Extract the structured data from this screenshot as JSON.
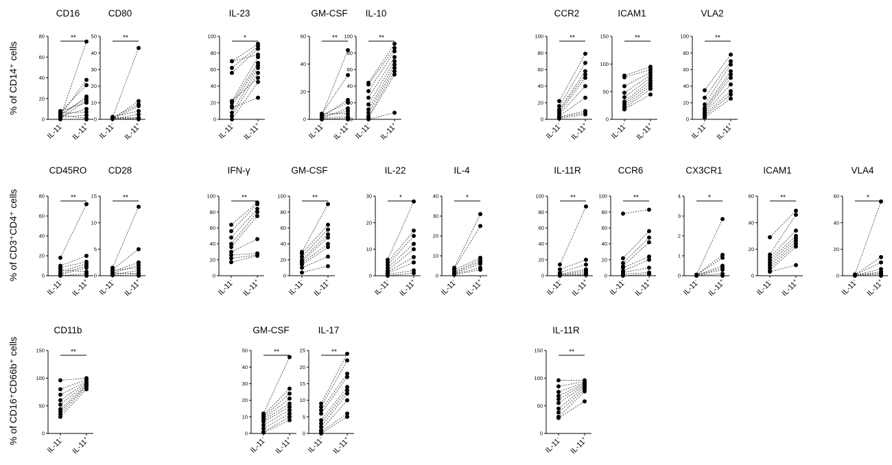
{
  "chart_data": [
    {
      "type": "scatter",
      "section": 0,
      "group": 0,
      "title": "CD16",
      "ylim": [
        0,
        80
      ],
      "yticks": [
        0,
        20,
        40,
        60,
        80
      ],
      "categories": [
        "IL-11-",
        "IL-11+"
      ],
      "significance": "**",
      "pairs": [
        [
          2,
          75
        ],
        [
          4,
          38
        ],
        [
          7,
          33
        ],
        [
          3,
          22
        ],
        [
          5,
          20
        ],
        [
          1,
          18
        ],
        [
          8,
          16
        ],
        [
          3,
          10
        ],
        [
          6,
          7
        ],
        [
          2,
          4
        ],
        [
          4,
          1
        ],
        [
          0,
          0
        ]
      ]
    },
    {
      "type": "scatter",
      "section": 0,
      "group": 0,
      "title": "CD80",
      "ylim": [
        0,
        50
      ],
      "yticks": [
        0,
        10,
        20,
        30,
        40,
        50
      ],
      "categories": [
        "IL-11-",
        "IL-11+"
      ],
      "significance": "**",
      "pairs": [
        [
          1,
          43
        ],
        [
          0.5,
          11
        ],
        [
          1,
          9
        ],
        [
          0.2,
          8
        ],
        [
          1.5,
          5
        ],
        [
          0.3,
          3
        ],
        [
          1,
          1
        ],
        [
          0.5,
          0.5
        ],
        [
          0.8,
          0
        ]
      ]
    },
    {
      "type": "scatter",
      "section": 0,
      "group": 1,
      "title": "IL-23",
      "ylim": [
        0,
        100
      ],
      "yticks": [
        0,
        20,
        40,
        60,
        80,
        100
      ],
      "categories": [
        "IL-11-",
        "IL-11+"
      ],
      "significance": "*",
      "pairs": [
        [
          70,
          91
        ],
        [
          62,
          88
        ],
        [
          56,
          85
        ],
        [
          70,
          78
        ],
        [
          22,
          75
        ],
        [
          20,
          68
        ],
        [
          16,
          65
        ],
        [
          8,
          62
        ],
        [
          4,
          56
        ],
        [
          22,
          50
        ],
        [
          0,
          45
        ],
        [
          14,
          26
        ]
      ]
    },
    {
      "type": "scatter",
      "section": 0,
      "group": 1,
      "title": "GM-CSF",
      "ylim": [
        0,
        60
      ],
      "yticks": [
        0,
        20,
        40,
        60
      ],
      "categories": [
        "IL-11-",
        "IL-11+"
      ],
      "significance": "**",
      "pairs": [
        [
          3,
          50
        ],
        [
          4,
          32
        ],
        [
          2,
          14
        ],
        [
          3,
          12
        ],
        [
          1,
          8
        ],
        [
          2,
          6
        ],
        [
          4,
          4
        ],
        [
          1,
          2
        ],
        [
          0,
          1
        ],
        [
          0.5,
          0
        ]
      ]
    },
    {
      "type": "scatter",
      "section": 0,
      "group": 1,
      "title": "IL-10",
      "ylim": [
        0,
        100
      ],
      "yticks": [
        0,
        20,
        40,
        60,
        80,
        100
      ],
      "categories": [
        "IL-11-",
        "IL-11+"
      ],
      "significance": "**",
      "pairs": [
        [
          44,
          91
        ],
        [
          42,
          86
        ],
        [
          34,
          82
        ],
        [
          26,
          75
        ],
        [
          18,
          70
        ],
        [
          12,
          66
        ],
        [
          8,
          62
        ],
        [
          4,
          58
        ],
        [
          2,
          54
        ],
        [
          0,
          8
        ]
      ]
    },
    {
      "type": "scatter",
      "section": 0,
      "group": 2,
      "title": "CCR2",
      "ylim": [
        0,
        100
      ],
      "yticks": [
        0,
        20,
        40,
        60,
        80,
        100
      ],
      "categories": [
        "IL-11-",
        "IL-11+"
      ],
      "significance": "**",
      "pairs": [
        [
          22,
          79
        ],
        [
          16,
          68
        ],
        [
          12,
          58
        ],
        [
          10,
          54
        ],
        [
          8,
          50
        ],
        [
          6,
          40
        ],
        [
          4,
          26
        ],
        [
          3,
          10
        ],
        [
          2,
          8
        ],
        [
          1,
          6
        ]
      ]
    },
    {
      "type": "scatter",
      "section": 0,
      "group": 2,
      "title": "ICAM1",
      "ylim": [
        0,
        150
      ],
      "yticks": [
        0,
        50,
        100,
        150
      ],
      "categories": [
        "IL-11-",
        "IL-11+"
      ],
      "significance": "**",
      "pairs": [
        [
          79,
          95
        ],
        [
          76,
          90
        ],
        [
          60,
          85
        ],
        [
          48,
          80
        ],
        [
          40,
          75
        ],
        [
          32,
          70
        ],
        [
          28,
          65
        ],
        [
          24,
          60
        ],
        [
          20,
          55
        ],
        [
          18,
          45
        ]
      ]
    },
    {
      "type": "scatter",
      "section": 0,
      "group": 2,
      "title": "VLA2",
      "ylim": [
        0,
        100
      ],
      "yticks": [
        0,
        20,
        40,
        60,
        80,
        100
      ],
      "categories": [
        "IL-11-",
        "IL-11+"
      ],
      "significance": "**",
      "pairs": [
        [
          35,
          78
        ],
        [
          26,
          70
        ],
        [
          18,
          66
        ],
        [
          14,
          58
        ],
        [
          12,
          54
        ],
        [
          10,
          50
        ],
        [
          8,
          42
        ],
        [
          6,
          34
        ],
        [
          4,
          30
        ],
        [
          2,
          25
        ]
      ]
    },
    {
      "type": "scatter",
      "section": 1,
      "group": 0,
      "title": "CD45RO",
      "ylim": [
        0,
        80
      ],
      "yticks": [
        0,
        20,
        40,
        60,
        80
      ],
      "categories": [
        "IL-11-",
        "IL-11+"
      ],
      "significance": "**",
      "pairs": [
        [
          18,
          72
        ],
        [
          10,
          20
        ],
        [
          8,
          14
        ],
        [
          4,
          12
        ],
        [
          2,
          10
        ],
        [
          1,
          8
        ],
        [
          6,
          4
        ],
        [
          0,
          2
        ],
        [
          0.5,
          0
        ]
      ]
    },
    {
      "type": "scatter",
      "section": 1,
      "group": 0,
      "title": "CD28",
      "ylim": [
        0,
        15
      ],
      "yticks": [
        0,
        5,
        10,
        15
      ],
      "categories": [
        "IL-11-",
        "IL-11+"
      ],
      "significance": "**",
      "pairs": [
        [
          1.5,
          13
        ],
        [
          1.2,
          5
        ],
        [
          0.8,
          2.5
        ],
        [
          0.5,
          2
        ],
        [
          1,
          1.5
        ],
        [
          0.2,
          1
        ],
        [
          0.3,
          0.5
        ],
        [
          0.6,
          0.2
        ],
        [
          0.1,
          0
        ]
      ]
    },
    {
      "type": "scatter",
      "section": 1,
      "group": 1,
      "title": "IFN-γ",
      "ylim": [
        0,
        100
      ],
      "yticks": [
        0,
        20,
        40,
        60,
        80,
        100
      ],
      "categories": [
        "IL-11-",
        "IL-11+"
      ],
      "significance": "**",
      "pairs": [
        [
          64,
          92
        ],
        [
          56,
          90
        ],
        [
          48,
          84
        ],
        [
          40,
          80
        ],
        [
          36,
          75
        ],
        [
          30,
          46
        ],
        [
          26,
          28
        ],
        [
          22,
          26
        ],
        [
          17,
          25
        ]
      ]
    },
    {
      "type": "scatter",
      "section": 1,
      "group": 1,
      "title": "GM-CSF",
      "ylim": [
        0,
        100
      ],
      "yticks": [
        0,
        20,
        40,
        60,
        80,
        100
      ],
      "categories": [
        "IL-11-",
        "IL-11+"
      ],
      "significance": "**",
      "pairs": [
        [
          30,
          90
        ],
        [
          28,
          64
        ],
        [
          24,
          58
        ],
        [
          20,
          52
        ],
        [
          18,
          48
        ],
        [
          16,
          40
        ],
        [
          14,
          36
        ],
        [
          10,
          24
        ],
        [
          4,
          12
        ]
      ]
    },
    {
      "type": "scatter",
      "section": 1,
      "group": 1,
      "title": "IL-22",
      "ylim": [
        0,
        30
      ],
      "yticks": [
        0,
        10,
        20,
        30
      ],
      "categories": [
        "IL-11-",
        "IL-11+"
      ],
      "significance": "*",
      "pairs": [
        [
          6,
          28
        ],
        [
          5,
          17
        ],
        [
          4,
          15
        ],
        [
          3,
          12
        ],
        [
          2,
          10
        ],
        [
          1.5,
          7
        ],
        [
          1,
          5
        ],
        [
          0.5,
          2
        ],
        [
          0,
          1
        ]
      ]
    },
    {
      "type": "scatter",
      "section": 1,
      "group": 1,
      "title": "IL-4",
      "ylim": [
        0,
        40
      ],
      "yticks": [
        0,
        10,
        20,
        30,
        40
      ],
      "categories": [
        "IL-11-",
        "IL-11+"
      ],
      "significance": "*",
      "pairs": [
        [
          4,
          31
        ],
        [
          3.5,
          25
        ],
        [
          3,
          9
        ],
        [
          2,
          8
        ],
        [
          1.5,
          7
        ],
        [
          1,
          6
        ],
        [
          0.8,
          4
        ],
        [
          0.5,
          3
        ]
      ]
    },
    {
      "type": "scatter",
      "section": 1,
      "group": 2,
      "title": "IL-11R",
      "ylim": [
        0,
        100
      ],
      "yticks": [
        0,
        20,
        40,
        60,
        80,
        100
      ],
      "categories": [
        "IL-11-",
        "IL-11+"
      ],
      "significance": "**",
      "pairs": [
        [
          14,
          87
        ],
        [
          8,
          20
        ],
        [
          4,
          14
        ],
        [
          2,
          8
        ],
        [
          1,
          6
        ],
        [
          0.5,
          4
        ],
        [
          0,
          2
        ],
        [
          0.2,
          1
        ]
      ]
    },
    {
      "type": "scatter",
      "section": 1,
      "group": 2,
      "title": "CCR6",
      "ylim": [
        0,
        100
      ],
      "yticks": [
        0,
        20,
        40,
        60,
        80,
        100
      ],
      "categories": [
        "IL-11-",
        "IL-11+"
      ],
      "significance": "**",
      "pairs": [
        [
          78,
          83
        ],
        [
          22,
          56
        ],
        [
          16,
          48
        ],
        [
          12,
          42
        ],
        [
          10,
          24
        ],
        [
          6,
          20
        ],
        [
          4,
          10
        ],
        [
          2,
          4
        ],
        [
          0,
          2
        ]
      ]
    },
    {
      "type": "scatter",
      "section": 1,
      "group": 2,
      "title": "CX3CR1",
      "ylim": [
        0,
        4
      ],
      "yticks": [
        0,
        1,
        2,
        3,
        4
      ],
      "categories": [
        "IL-11-",
        "IL-11+"
      ],
      "significance": "*",
      "pairs": [
        [
          0.05,
          2.85
        ],
        [
          0.04,
          1.05
        ],
        [
          0.03,
          0.9
        ],
        [
          0.02,
          0.5
        ],
        [
          0.02,
          0.4
        ],
        [
          0.01,
          0.3
        ],
        [
          0.01,
          0.1
        ],
        [
          0,
          0
        ]
      ]
    },
    {
      "type": "scatter",
      "section": 1,
      "group": 2,
      "title": "ICAM1",
      "ylim": [
        0,
        60
      ],
      "yticks": [
        0,
        20,
        40,
        60
      ],
      "categories": [
        "IL-11-",
        "IL-11+"
      ],
      "significance": "**",
      "pairs": [
        [
          29,
          49
        ],
        [
          16,
          46
        ],
        [
          14,
          34
        ],
        [
          12,
          30
        ],
        [
          10,
          28
        ],
        [
          8,
          26
        ],
        [
          6,
          24
        ],
        [
          4,
          22
        ],
        [
          3,
          8
        ]
      ]
    },
    {
      "type": "scatter",
      "section": 1,
      "group": 2,
      "title": "VLA4",
      "ylim": [
        0,
        60
      ],
      "yticks": [
        0,
        20,
        40,
        60
      ],
      "categories": [
        "IL-11-",
        "IL-11+"
      ],
      "significance": "*",
      "pairs": [
        [
          1,
          56
        ],
        [
          0.8,
          14
        ],
        [
          0.6,
          10
        ],
        [
          0.4,
          5
        ],
        [
          0.3,
          3
        ],
        [
          0.2,
          2
        ],
        [
          0.1,
          1
        ],
        [
          0,
          0
        ]
      ]
    },
    {
      "type": "scatter",
      "section": 2,
      "group": 0,
      "title": "CD11b",
      "ylim": [
        0,
        150
      ],
      "yticks": [
        0,
        50,
        100,
        150
      ],
      "categories": [
        "IL-11-",
        "IL-11+"
      ],
      "significance": "**",
      "pairs": [
        [
          96,
          100
        ],
        [
          80,
          97
        ],
        [
          70,
          94
        ],
        [
          60,
          92
        ],
        [
          52,
          90
        ],
        [
          44,
          88
        ],
        [
          40,
          86
        ],
        [
          35,
          84
        ],
        [
          30,
          80
        ]
      ]
    },
    {
      "type": "scatter",
      "section": 2,
      "group": 1,
      "title": "GM-CSF",
      "ylim": [
        0,
        50
      ],
      "yticks": [
        0,
        10,
        20,
        30,
        40,
        50
      ],
      "categories": [
        "IL-11-",
        "IL-11+"
      ],
      "significance": "**",
      "pairs": [
        [
          12,
          46
        ],
        [
          11,
          27
        ],
        [
          10,
          24
        ],
        [
          9,
          21
        ],
        [
          8,
          18
        ],
        [
          7,
          16
        ],
        [
          5,
          14
        ],
        [
          3,
          12
        ],
        [
          1,
          10
        ],
        [
          0.5,
          8
        ]
      ]
    },
    {
      "type": "scatter",
      "section": 2,
      "group": 1,
      "title": "IL-17",
      "ylim": [
        0,
        25
      ],
      "yticks": [
        0,
        5,
        10,
        15,
        20,
        25
      ],
      "categories": [
        "IL-11-",
        "IL-11+"
      ],
      "significance": "**",
      "pairs": [
        [
          9,
          24
        ],
        [
          8,
          22
        ],
        [
          7,
          18
        ],
        [
          6,
          17
        ],
        [
          4,
          14
        ],
        [
          3,
          13
        ],
        [
          2,
          12
        ],
        [
          1,
          10
        ],
        [
          0.5,
          6
        ],
        [
          0,
          5
        ]
      ]
    },
    {
      "type": "scatter",
      "section": 2,
      "group": 2,
      "title": "IL-11R",
      "ylim": [
        0,
        150
      ],
      "yticks": [
        0,
        50,
        100,
        150
      ],
      "categories": [
        "IL-11-",
        "IL-11+"
      ],
      "significance": "**",
      "pairs": [
        [
          96,
          96
        ],
        [
          85,
          94
        ],
        [
          75,
          92
        ],
        [
          68,
          90
        ],
        [
          62,
          88
        ],
        [
          55,
          86
        ],
        [
          45,
          84
        ],
        [
          38,
          80
        ],
        [
          30,
          76
        ],
        [
          28,
          58
        ]
      ]
    }
  ],
  "ylabels": [
    "% of CD14⁺ cells",
    "% of CD3⁺CD4⁺ cells",
    "% of CD16⁺CD66b⁺ cells"
  ],
  "xtick_base": "IL-11",
  "xtick_sups": [
    "-",
    "+"
  ]
}
